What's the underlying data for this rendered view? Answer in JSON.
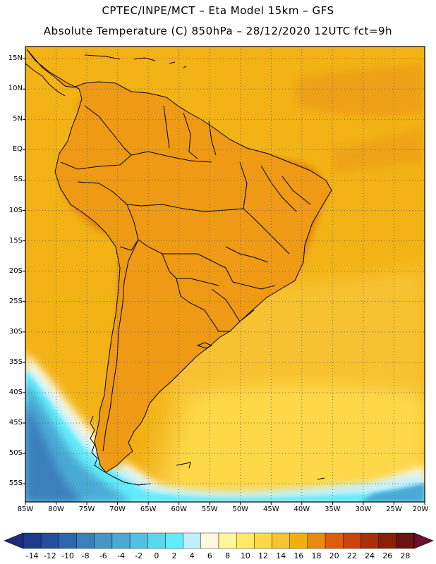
{
  "title": {
    "line1": "CPTEC/INPE/MCT –  Eta Model 15km – GFS",
    "line2": "Absolute Temperature (C) 850hPa – 28/12/2020 12UTC fct=9h"
  },
  "map": {
    "lon_range": [
      -85,
      -20
    ],
    "lat_range": [
      -58,
      17
    ],
    "grid": "dotted",
    "lat_ticks": [
      "15N",
      "10N",
      "5N",
      "EQ",
      "5S",
      "10S",
      "15S",
      "20S",
      "25S",
      "30S",
      "35S",
      "40S",
      "45S",
      "50S",
      "55S"
    ],
    "lon_ticks": [
      "85W",
      "80W",
      "75W",
      "70W",
      "65W",
      "60W",
      "55W",
      "50W",
      "45W",
      "40W",
      "35W",
      "30W",
      "25W",
      "20W"
    ]
  },
  "colorbar": {
    "unit": "C",
    "labels": [
      "-14",
      "-12",
      "-10",
      "-8",
      "-6",
      "-4",
      "-2",
      "0",
      "2",
      "4",
      "6",
      "8",
      "10",
      "12",
      "14",
      "16",
      "18",
      "20",
      "22",
      "24",
      "26",
      "28"
    ],
    "colors": [
      "#1f3a8a",
      "#244f9c",
      "#2c67ad",
      "#3a80bd",
      "#4496c8",
      "#4aaad5",
      "#52bfe3",
      "#5ad6ef",
      "#62ecfb",
      "#bff0ff",
      "#fff8dc",
      "#fff59a",
      "#ffe968",
      "#ffd849",
      "#f7c233",
      "#f0ae10",
      "#e98813",
      "#de5c0e",
      "#c94409",
      "#a82f07",
      "#8a2006",
      "#6b1414"
    ],
    "under_color": "#1e2a7a",
    "over_color": "#6a0f2e"
  }
}
